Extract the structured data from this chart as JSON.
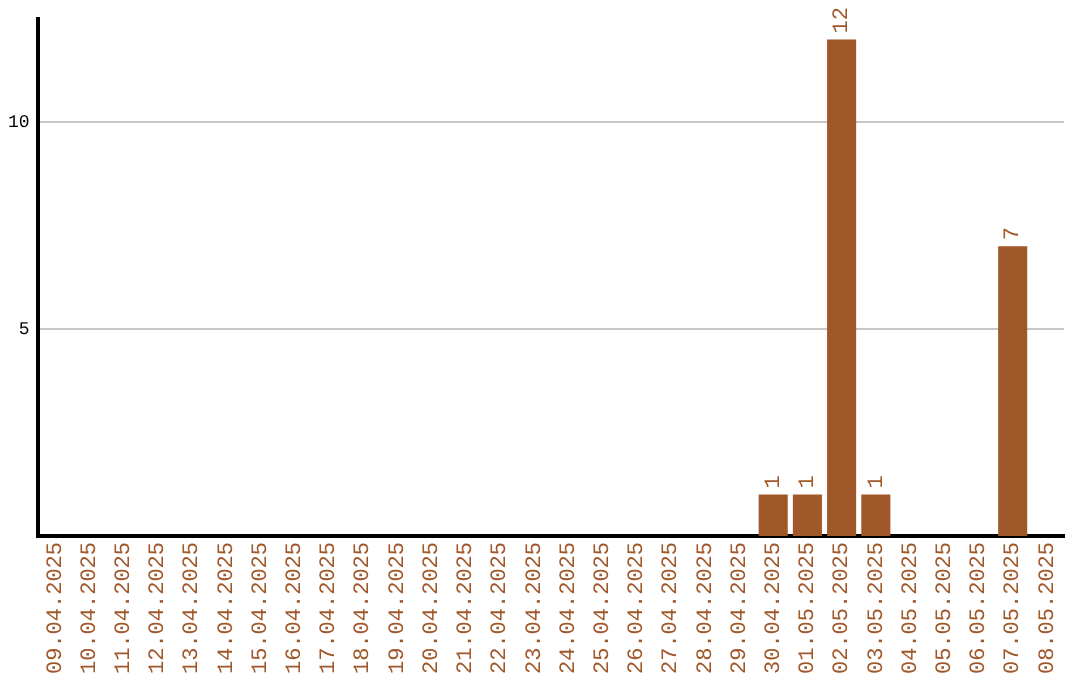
{
  "chart_data": {
    "type": "bar",
    "categories": [
      "09.04.2025",
      "10.04.2025",
      "11.04.2025",
      "12.04.2025",
      "13.04.2025",
      "14.04.2025",
      "15.04.2025",
      "16.04.2025",
      "17.04.2025",
      "18.04.2025",
      "19.04.2025",
      "20.04.2025",
      "21.04.2025",
      "22.04.2025",
      "23.04.2025",
      "24.04.2025",
      "25.04.2025",
      "26.04.2025",
      "27.04.2025",
      "28.04.2025",
      "29.04.2025",
      "30.04.2025",
      "01.05.2025",
      "02.05.2025",
      "03.05.2025",
      "04.05.2025",
      "05.05.2025",
      "06.05.2025",
      "07.05.2025",
      "08.05.2025"
    ],
    "values": [
      0,
      0,
      0,
      0,
      0,
      0,
      0,
      0,
      0,
      0,
      0,
      0,
      0,
      0,
      0,
      0,
      0,
      0,
      0,
      0,
      0,
      1,
      1,
      12,
      1,
      0,
      0,
      0,
      7,
      0
    ],
    "value_labels": [
      null,
      null,
      null,
      null,
      null,
      null,
      null,
      null,
      null,
      null,
      null,
      null,
      null,
      null,
      null,
      null,
      null,
      null,
      null,
      null,
      null,
      "1",
      "1",
      "12",
      "1",
      null,
      null,
      null,
      "7",
      null
    ],
    "color": "#a0582a",
    "ylim": [
      0,
      12.5
    ],
    "yticks": [
      5,
      10
    ],
    "grid": "y",
    "legend": false
  }
}
